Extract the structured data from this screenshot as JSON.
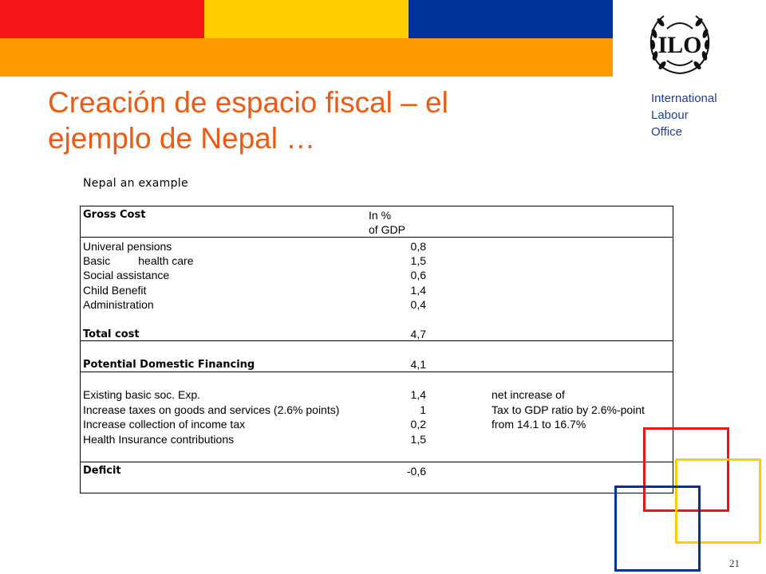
{
  "header": {
    "colors": {
      "red": "#f5161b",
      "yellow": "#ffcc00",
      "blue": "#003399",
      "orange": "#ff9900"
    }
  },
  "logo": {
    "text": "ILO",
    "icon": "ilo-wreath-icon"
  },
  "org": {
    "line1": "International",
    "line2": "Labour",
    "line3": "Office"
  },
  "title": {
    "line1": "Creación de espacio fiscal – el",
    "line2": "ejemplo de Nepal …"
  },
  "table": {
    "caption": "Nepal an example",
    "header": {
      "label": "Gross Cost",
      "col_line1": "In %",
      "col_line2": "of GDP"
    },
    "costs": [
      {
        "label": "Univeral pensions",
        "value": "0,8"
      },
      {
        "label": "Basic         health care",
        "value": "1,5"
      },
      {
        "label": "Social assistance",
        "value": "0,6"
      },
      {
        "label": "Child Benefit",
        "value": "1,4"
      },
      {
        "label": "Administration",
        "value": "0,4"
      }
    ],
    "total": {
      "label": "Total cost",
      "value": "4,7"
    },
    "potential": {
      "label": "Potential Domestic Financing",
      "value": "4,1"
    },
    "financing": [
      {
        "label": "Existing basic soc. Exp.",
        "value": "1,4",
        "note": "net increase of"
      },
      {
        "label": "Increase taxes on goods and services (2.6% points)",
        "value": "1",
        "note": "Tax to GDP ratio by 2.6%-point"
      },
      {
        "label": "Increase collection of income tax",
        "value": "0,2",
        "note": "from  14.1 to 16.7%"
      },
      {
        "label": "Health Insurance contributions",
        "value": "1,5",
        "note": ""
      }
    ],
    "deficit": {
      "label": "Deficit",
      "value": "-0,6"
    }
  },
  "page_number": "21"
}
